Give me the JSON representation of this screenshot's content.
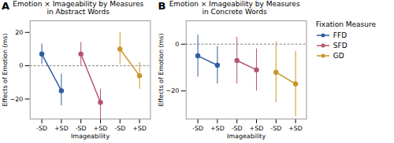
{
  "chart_data": [
    {
      "type": "line",
      "title": "Emotion × Imageability by Measures\nin Abstract Words",
      "annotations": [
        "A"
      ],
      "xlabel": "Imageability",
      "ylabel": "Effects of Emotion (ms)",
      "categories": [
        "-SD",
        "+SD",
        "-SD",
        "+SD",
        "-SD",
        "+SD"
      ],
      "series": [
        {
          "name": "FFD",
          "color": "#2E5E9E",
          "marker": "circle",
          "values": [
            7,
            -15,
            null,
            null,
            null,
            null
          ],
          "error_low": [
            6,
            9,
            null,
            null,
            null,
            null
          ],
          "error_high": [
            6,
            10,
            null,
            null,
            null,
            null
          ]
        },
        {
          "name": "SFD",
          "color": "#B5546E",
          "marker": "circle",
          "values": [
            null,
            null,
            7,
            -22,
            null,
            null
          ],
          "error_low": [
            null,
            null,
            7,
            10,
            null,
            null
          ],
          "error_high": [
            null,
            null,
            7,
            8,
            null,
            null
          ]
        },
        {
          "name": "GD",
          "color": "#C9952A",
          "marker": "circle",
          "values": [
            null,
            null,
            null,
            null,
            10,
            -6
          ],
          "error_low": [
            null,
            null,
            null,
            null,
            9,
            8
          ],
          "error_high": [
            null,
            null,
            null,
            null,
            10,
            8
          ]
        }
      ],
      "ylim": [
        -32,
        27
      ],
      "yticks": [
        -20,
        0,
        20
      ]
    },
    {
      "type": "line",
      "title": "Emotion × Imageability by Measures\nin Concrete Words",
      "annotations": [
        "B"
      ],
      "xlabel": "Imageability",
      "ylabel": "Effects of Emotion (ms)",
      "categories": [
        "-SD",
        "+SD",
        "-SD",
        "+SD",
        "-SD",
        "+SD"
      ],
      "series": [
        {
          "name": "FFD",
          "color": "#2E5E9E",
          "marker": "circle",
          "values": [
            -5,
            -9,
            null,
            null,
            null,
            null
          ],
          "error_low": [
            9,
            8,
            null,
            null,
            null,
            null
          ],
          "error_high": [
            9,
            8,
            null,
            null,
            null,
            null
          ]
        },
        {
          "name": "SFD",
          "color": "#B5546E",
          "marker": "circle",
          "values": [
            null,
            null,
            -7,
            -11,
            null,
            null
          ],
          "error_low": [
            null,
            null,
            10,
            9,
            null,
            null
          ],
          "error_high": [
            null,
            null,
            10,
            9,
            null,
            null
          ]
        },
        {
          "name": "GD",
          "color": "#C9952A",
          "marker": "circle",
          "values": [
            null,
            null,
            null,
            null,
            -12,
            -17
          ],
          "error_low": [
            null,
            null,
            null,
            null,
            13,
            14
          ],
          "error_high": [
            null,
            null,
            null,
            null,
            13,
            14
          ]
        }
      ],
      "ylim": [
        -32,
        10
      ],
      "yticks": [
        -20,
        0
      ],
      "legend": "right",
      "legend_title": "Fixation Measure"
    }
  ]
}
